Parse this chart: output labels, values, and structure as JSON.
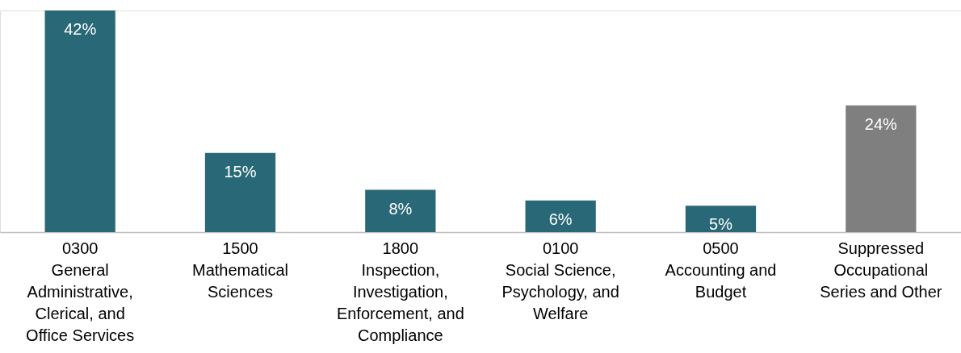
{
  "chart_data": {
    "type": "bar",
    "categories": [
      "0300\nGeneral\nAdministrative,\nClerical, and\nOffice Services",
      "1500\nMathematical\nSciences",
      "1800\nInspection,\nInvestigation,\nEnforcement, and\nCompliance",
      "0100\nSocial Science,\nPsychology, and\nWelfare",
      "0500\nAccounting and\nBudget",
      "Suppressed\nOccupational\nSeries and Other"
    ],
    "values": [
      42,
      15,
      8,
      6,
      5,
      24
    ],
    "value_labels": [
      "42%",
      "15%",
      "8%",
      "6%",
      "5%",
      "24%"
    ],
    "colors": [
      "#296877",
      "#296877",
      "#296877",
      "#296877",
      "#296877",
      "#7f7f7f"
    ],
    "grid": false
  }
}
